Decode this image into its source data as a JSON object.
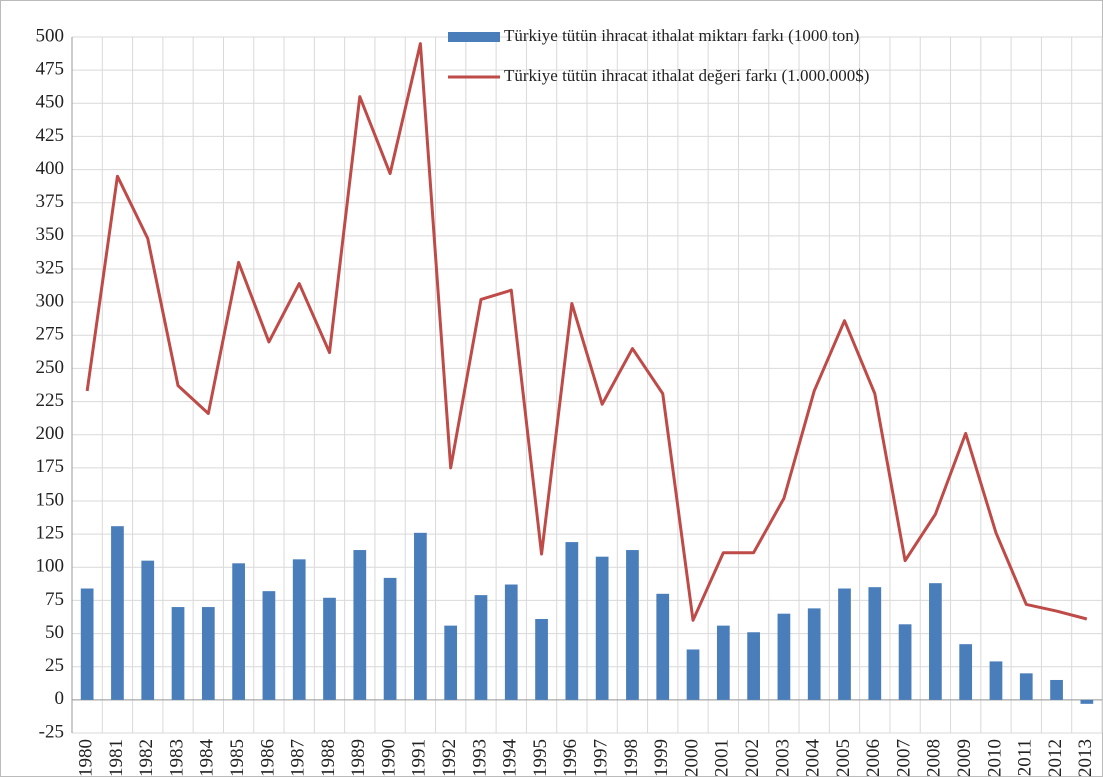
{
  "chart_data": {
    "type": "bar_line",
    "categories": [
      "1980",
      "1981",
      "1982",
      "1983",
      "1984",
      "1985",
      "1986",
      "1987",
      "1988",
      "1989",
      "1990",
      "1991",
      "1992",
      "1993",
      "1994",
      "1995",
      "1996",
      "1997",
      "1998",
      "1999",
      "2000",
      "2001",
      "2002",
      "2003",
      "2004",
      "2005",
      "2006",
      "2007",
      "2008",
      "2009",
      "2010",
      "2011",
      "2012",
      "2013"
    ],
    "series": [
      {
        "name": "Türkiye tütün ihracat ithalat miktarı farkı (1000 ton)",
        "type": "bar",
        "color": "#4a7ebb",
        "values": [
          84,
          131,
          105,
          70,
          70,
          103,
          82,
          106,
          77,
          113,
          92,
          126,
          56,
          79,
          87,
          61,
          119,
          108,
          113,
          80,
          38,
          56,
          51,
          65,
          69,
          84,
          85,
          57,
          88,
          42,
          29,
          20,
          15,
          -3
        ]
      },
      {
        "name": "Türkiye tütün ihracat ithalat değeri farkı (1.000.000$)",
        "type": "line",
        "color": "#be4b48",
        "values": [
          233,
          395,
          348,
          237,
          216,
          330,
          270,
          314,
          262,
          455,
          397,
          495,
          175,
          302,
          309,
          110,
          299,
          223,
          265,
          231,
          60,
          111,
          111,
          152,
          233,
          286,
          231,
          105,
          140,
          201,
          126,
          72,
          67,
          61
        ]
      }
    ],
    "ylim": [
      -25,
      500
    ],
    "yticks": [
      -25,
      0,
      25,
      50,
      75,
      100,
      125,
      150,
      175,
      200,
      225,
      250,
      275,
      300,
      325,
      350,
      375,
      400,
      425,
      450,
      475,
      500
    ],
    "grid": true,
    "legend": "top-right"
  }
}
